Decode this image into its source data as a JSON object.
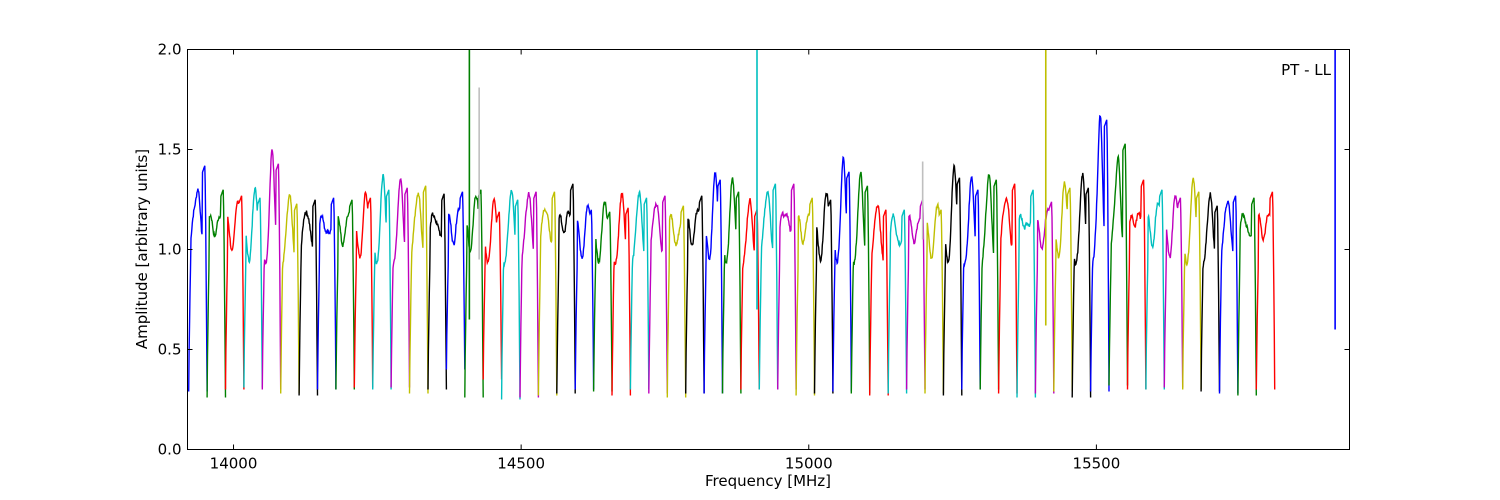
{
  "chart_data": {
    "type": "line",
    "title": "",
    "annotation": "PT - LL",
    "xlabel": "Frequency [MHz]",
    "ylabel": "Amplitude [arbitrary units]",
    "xlim": [
      13920,
      15940
    ],
    "ylim": [
      0.0,
      2.0
    ],
    "xticks": [
      14000,
      14500,
      15000,
      15500
    ],
    "xtick_labels": [
      "14000",
      "14500",
      "15000",
      "15500"
    ],
    "yticks": [
      0.0,
      0.5,
      1.0,
      1.5,
      2.0
    ],
    "ytick_labels": [
      "0.0",
      "0.5",
      "1.0",
      "1.5",
      "2.0"
    ],
    "grid": false,
    "legend": "none",
    "color_cycle": [
      "#0000ff",
      "#008000",
      "#ff0000",
      "#00bfbf",
      "#bf00bf",
      "#bfbf00",
      "#000000"
    ],
    "channel_width_mhz": 32,
    "channel_start_mhz": 13922,
    "channel_peaks": [
      1.42,
      1.3,
      1.27,
      1.26,
      1.43,
      1.23,
      1.25,
      1.26,
      1.25,
      1.26,
      1.3,
      1.31,
      1.32,
      1.28,
      1.29,
      1.3,
      1.19,
      1.25,
      1.29,
      1.29,
      1.33,
      1.2,
      1.19,
      1.21,
      1.26,
      1.27,
      1.22,
      1.27,
      1.35,
      1.29,
      1.2,
      1.33,
      1.33,
      1.26,
      1.25,
      1.39,
      1.32,
      1.2,
      1.2,
      1.25,
      1.2,
      1.36,
      1.3,
      1.35,
      1.33,
      1.3,
      1.24,
      1.31,
      1.31,
      1.65,
      1.53,
      1.35,
      1.3,
      1.26,
      1.29,
      1.22,
      1.27,
      1.26,
      1.29
    ],
    "channel_dips": [
      0.29,
      0.26,
      0.3,
      0.31,
      0.3,
      0.28,
      0.27,
      0.3,
      0.3,
      0.31,
      0.3,
      0.31,
      0.28,
      0.3,
      0.4,
      0.26,
      0.35,
      0.25,
      0.26,
      0.27,
      0.28,
      0.3,
      0.29,
      0.27,
      0.3,
      0.28,
      0.26,
      0.28,
      0.28,
      0.28,
      0.3,
      0.3,
      0.3,
      0.27,
      0.28,
      0.29,
      0.28,
      0.27,
      0.28,
      0.3,
      0.28,
      0.27,
      0.3,
      0.3,
      0.28,
      0.26,
      0.28,
      0.29,
      0.26,
      0.29,
      0.32,
      0.3,
      0.3,
      0.31,
      0.3,
      0.29,
      0.28,
      0.27,
      0.3
    ],
    "spikes": [
      {
        "x": 14410,
        "ymax": 2.0,
        "ymin": 0.65,
        "color": "#008000"
      },
      {
        "x": 14427,
        "ymax": 1.81,
        "ymin": 0.95,
        "color": "#bfbfbf"
      },
      {
        "x": 14910,
        "ymax": 2.0,
        "ymin": 0.7,
        "color": "#00bfbf"
      },
      {
        "x": 15412,
        "ymax": 2.0,
        "ymin": 0.62,
        "color": "#bfbf00"
      },
      {
        "x": 15198,
        "ymax": 1.44,
        "ymin": 1.05,
        "color": "#bfbfbf"
      },
      {
        "x": 15915,
        "ymax": 2.0,
        "ymin": 0.6,
        "color": "#0000ff"
      }
    ]
  }
}
